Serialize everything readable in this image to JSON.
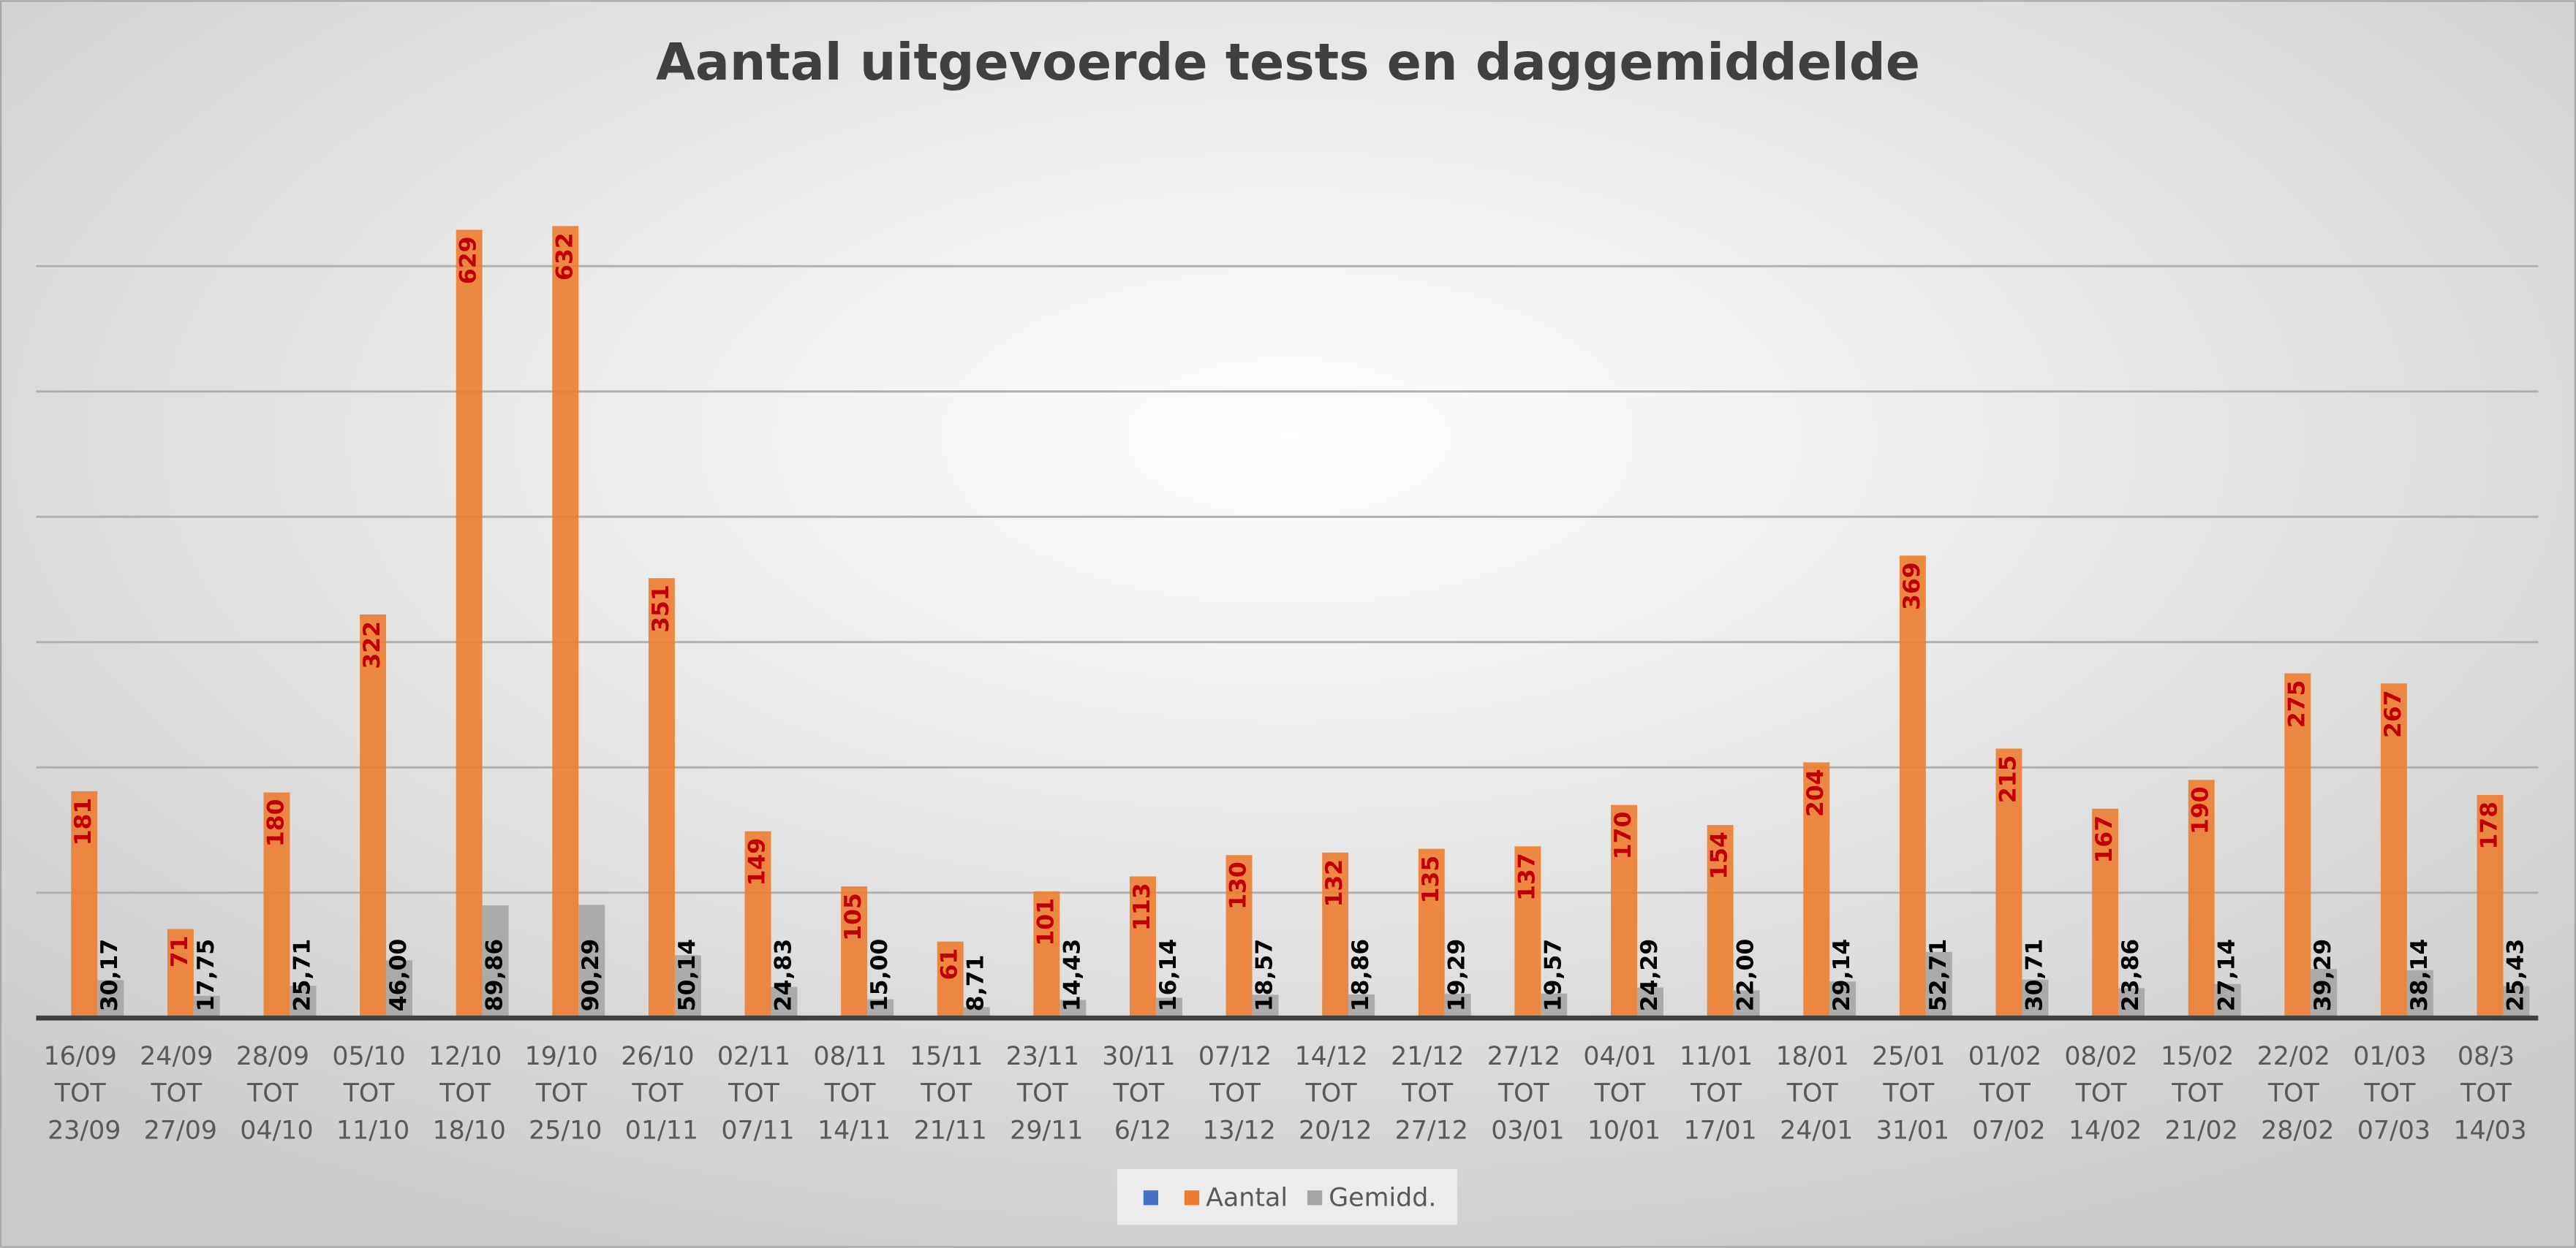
{
  "chart_data": {
    "type": "bar",
    "title": "Aantal uitgevoerde tests en daggemiddelde",
    "categories": [
      "16/09 TOT 23/09",
      "24/09 TOT 27/09",
      "28/09 TOT 04/10",
      "05/10 TOT 11/10",
      "12/10 TOT 18/10",
      "19/10 TOT 25/10",
      "26/10 TOT 01/11",
      "02/11 TOT 07/11",
      "08/11 TOT 14/11",
      "15/11 TOT 21/11",
      "23/11 TOT 29/11",
      "30/11 TOT 6/12",
      "07/12 TOT 13/12",
      "14/12 TOT 20/12",
      "21/12 TOT 27/12",
      "27/12 TOT 03/01",
      "04/01 TOT 10/01",
      "11/01 TOT 17/01",
      "18/01 TOT 24/01",
      "25/01 TOT 31/01",
      "01/02 TOT 07/02",
      "08/02 TOT 14/02",
      "15/02 TOT 21/02",
      "22/02 TOT 28/02",
      "01/03 TOT 07/03",
      "08/3 TOT 14/03"
    ],
    "series": [
      {
        "color": "#4472c4",
        "values": [
          null,
          null,
          null,
          null,
          null,
          null,
          null,
          null,
          null,
          null,
          null,
          null,
          null,
          null,
          null,
          null,
          null,
          null,
          null,
          null,
          null,
          null,
          null,
          null,
          null,
          null
        ]
      },
      {
        "name": "Aantal",
        "color": "#ed7d31",
        "values": [
          181,
          71,
          180,
          322,
          629,
          632,
          351,
          149,
          105,
          61,
          101,
          113,
          130,
          132,
          135,
          137,
          170,
          154,
          204,
          369,
          215,
          167,
          190,
          275,
          267,
          178
        ]
      },
      {
        "name": "Gemidd.",
        "color": "#a5a5a5",
        "values": [
          30.17,
          17.75,
          25.71,
          46.0,
          89.86,
          90.29,
          50.14,
          24.83,
          15.0,
          8.71,
          14.43,
          16.14,
          18.57,
          18.86,
          19.29,
          19.57,
          24.29,
          22.0,
          29.14,
          52.71,
          30.71,
          23.86,
          27.14,
          39.29,
          38.14,
          25.43
        ],
        "value_labels": [
          "30,17",
          "17,75",
          "25,71",
          "46,00",
          "89,86",
          "90,29",
          "50,14",
          "24,83",
          "15,00",
          "8,71",
          "14,43",
          "16,14",
          "18,57",
          "18,86",
          "19,29",
          "19,57",
          "24,29",
          "22,00",
          "29,14",
          "52,71",
          "30,71",
          "23,86",
          "27,14",
          "39,29",
          "38,14",
          "25,43"
        ]
      }
    ],
    "ylim": [
      0,
      700
    ],
    "yticks": [
      0,
      100,
      200,
      300,
      400,
      500,
      600
    ],
    "grid": true,
    "legend": "bottom"
  }
}
